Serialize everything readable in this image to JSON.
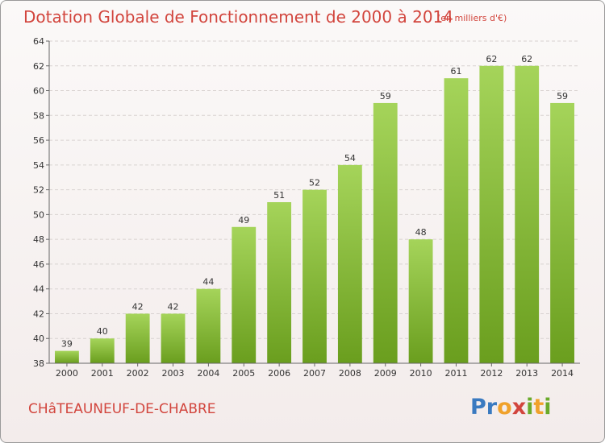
{
  "header": {
    "title": "Dotation Globale de Fonctionnement de 2000 à 2014",
    "subtitle": "(en milliers d'€)"
  },
  "footer": {
    "commune": "CHâTEAUNEUF-DE-CHABRE",
    "logo": "Proxiti"
  },
  "colors": {
    "title": "#d2453d",
    "bar_top": "#a5d45a",
    "bar_bottom": "#6a9e1e"
  },
  "chart_data": {
    "type": "bar",
    "title": "Dotation Globale de Fonctionnement de 2000 à 2014",
    "subtitle": "(en milliers d'€)",
    "categories": [
      "2000",
      "2001",
      "2002",
      "2003",
      "2004",
      "2005",
      "2006",
      "2007",
      "2008",
      "2009",
      "2010",
      "2011",
      "2012",
      "2013",
      "2014"
    ],
    "values": [
      39,
      40,
      42,
      42,
      44,
      49,
      51,
      52,
      54,
      59,
      48,
      61,
      62,
      62,
      59
    ],
    "ylim": [
      38,
      64
    ],
    "yticks": [
      38,
      40,
      42,
      44,
      46,
      48,
      50,
      52,
      54,
      56,
      58,
      60,
      62,
      64
    ],
    "grid": true,
    "legend": "none"
  }
}
